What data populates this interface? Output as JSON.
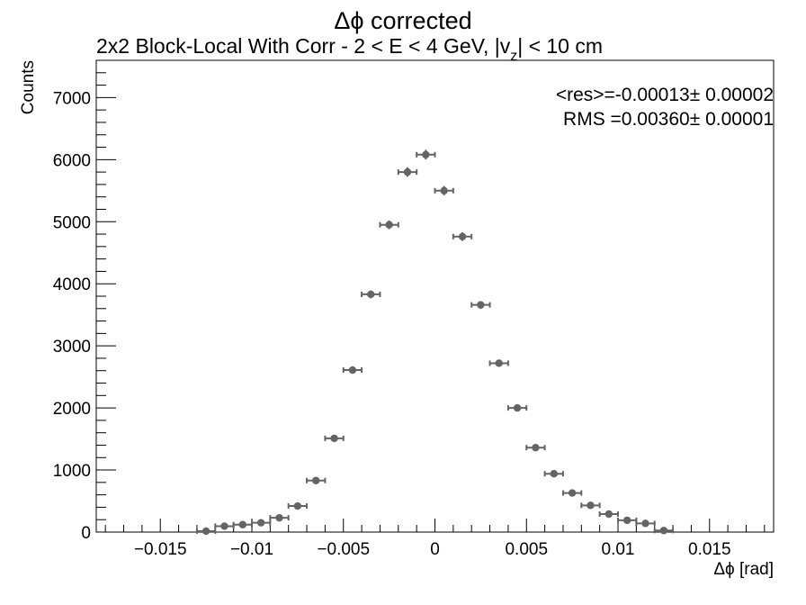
{
  "chart_data": {
    "type": "scatter",
    "title": "Δϕ corrected",
    "subtitle": {
      "pre": "2x2 Block-Local With Corr   -   2 < E < 4 GeV, |v",
      "sub": "z",
      "post": "| < 10 cm"
    },
    "xlabel": "Δϕ  [rad]",
    "ylabel": "Counts",
    "xlim": [
      -0.0185,
      0.0185
    ],
    "ylim": [
      0,
      7600
    ],
    "x_ticks": [
      -0.015,
      -0.01,
      -0.005,
      0,
      0.005,
      0.01,
      0.015
    ],
    "x_tick_labels": [
      "−0.015",
      "−0.01",
      "−0.005",
      "0",
      "0.005",
      "0.01",
      "0.015"
    ],
    "y_ticks": [
      0,
      1000,
      2000,
      3000,
      4000,
      5000,
      6000,
      7000
    ],
    "y_tick_labels": [
      "0",
      "1000",
      "2000",
      "3000",
      "4000",
      "5000",
      "6000",
      "7000"
    ],
    "bin_width": 0.001,
    "marker_color": "#646464",
    "stats": [
      {
        "pre": "<res>=-0.00013",
        "pm": "±",
        "post": " 0.00002"
      },
      {
        "pre": "RMS =0.00360",
        "pm": "±",
        "post": " 0.00001"
      }
    ],
    "series": [
      {
        "x": [
          -0.0125,
          -0.0115,
          -0.0105,
          -0.0095,
          -0.0085,
          -0.0075,
          -0.0065,
          -0.0055,
          -0.0045,
          -0.0035,
          -0.0025,
          -0.0015,
          -0.0005,
          0.0005,
          0.0015,
          0.0025,
          0.0035,
          0.0045,
          0.0055,
          0.0065,
          0.0075,
          0.0085,
          0.0095,
          0.0105,
          0.0115,
          0.0125
        ],
        "y": [
          15,
          95,
          120,
          150,
          230,
          420,
          830,
          1510,
          2610,
          3830,
          4950,
          5800,
          6080,
          5500,
          4760,
          3660,
          2720,
          2000,
          1360,
          940,
          630,
          430,
          290,
          190,
          140,
          25
        ]
      }
    ]
  }
}
